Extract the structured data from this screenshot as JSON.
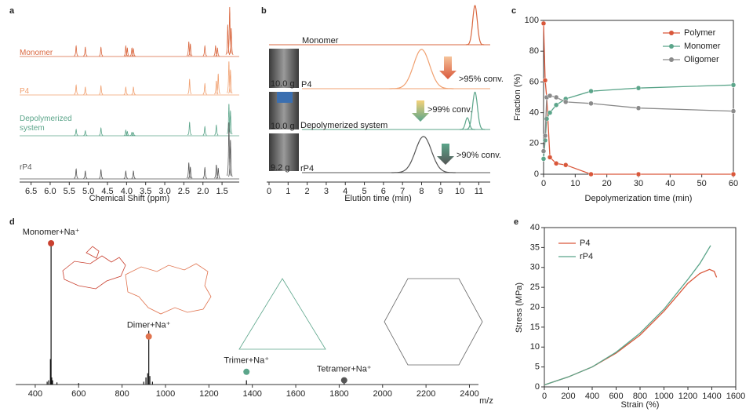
{
  "chart_data": [
    {
      "type": "spectrum",
      "panel": "a",
      "xlabel": "Chemical Shift (ppm)",
      "xlim": [
        6.8,
        1.05
      ],
      "xticks": [
        6.5,
        {
          "value": 6,
          "label": "6.0"
        },
        5.5,
        {
          "value": 5,
          "label": "5.0"
        },
        4.5,
        {
          "value": 4,
          "label": "4.0"
        },
        3.5,
        {
          "value": 3,
          "label": "3.0"
        },
        2.5,
        {
          "value": 2,
          "label": "2.0"
        },
        1.5
      ],
      "series": [
        {
          "name": "Monomer",
          "color": "#d9673f",
          "x": [
            5.32,
            5.08,
            4.67,
            4.02,
            3.98,
            3.86,
            3.82,
            2.37,
            2.33,
            1.95,
            1.67,
            1.62,
            1.35,
            1.3,
            1.26
          ],
          "values": [
            30,
            26,
            26,
            30,
            24,
            24,
            22,
            42,
            36,
            30,
            30,
            24,
            90,
            140,
            80
          ]
        },
        {
          "name": "P4",
          "color": "#f0a070",
          "x": [
            5.32,
            5.08,
            4.67,
            4.02,
            3.82,
            2.35,
            1.95,
            1.65,
            1.6,
            1.32,
            1.28
          ],
          "values": [
            28,
            22,
            26,
            22,
            22,
            44,
            32,
            40,
            60,
            95,
            70
          ]
        },
        {
          "name": "Depolymerized system",
          "color": "#5ba58a",
          "x": [
            5.32,
            5.08,
            4.67,
            4.02,
            3.98,
            3.86,
            3.82,
            2.35,
            1.95,
            1.65,
            1.32,
            1.28
          ],
          "values": [
            18,
            14,
            22,
            16,
            12,
            10,
            9,
            38,
            26,
            30,
            90,
            70
          ]
        },
        {
          "name": "rP4",
          "color": "#555555",
          "x": [
            5.32,
            5.08,
            4.67,
            4.02,
            3.82,
            2.37,
            2.33,
            1.95,
            1.65,
            1.6,
            1.32,
            1.28
          ],
          "values": [
            28,
            22,
            26,
            22,
            22,
            46,
            34,
            32,
            40,
            30,
            160,
            110
          ]
        }
      ]
    },
    {
      "type": "chromatogram",
      "panel": "b",
      "xlabel": "Elution time (min)",
      "xlim": [
        0,
        11.6
      ],
      "xticks": [
        0,
        1,
        2,
        3,
        4,
        5,
        6,
        7,
        8,
        9,
        10,
        11
      ],
      "series": [
        {
          "name": "Monomer",
          "color": "#d9673f",
          "x": [
            10.8
          ],
          "values": [
            100
          ],
          "widths": [
            0.12
          ]
        },
        {
          "name": "P4",
          "color": "#f0a070",
          "x": [
            8.0
          ],
          "values": [
            100
          ],
          "widths": [
            0.42
          ]
        },
        {
          "name": "Depolymerized system",
          "color": "#5ba58a",
          "x": [
            10.4,
            10.8
          ],
          "values": [
            30,
            95
          ],
          "widths": [
            0.1,
            0.13
          ]
        },
        {
          "name": "rP4",
          "color": "#555555",
          "x": [
            8.1
          ],
          "values": [
            92
          ],
          "widths": [
            0.42
          ]
        }
      ],
      "photo_labels": [
        "10.0 g",
        "10.0 g",
        "9.2 g"
      ],
      "annotations": [
        ">95% conv.",
        ">99% conv.",
        ">90% conv."
      ]
    },
    {
      "type": "line",
      "panel": "c",
      "xlabel": "Depolymerization time (min)",
      "ylabel": "Fraction (%)",
      "xlim": [
        0,
        60
      ],
      "xticks": [
        0,
        10,
        20,
        30,
        40,
        50,
        60
      ],
      "ylim": [
        0,
        100
      ],
      "yticks": [
        0,
        20,
        40,
        60,
        80,
        100
      ],
      "markers": true,
      "legend": "top-right",
      "series": [
        {
          "name": "Polymer",
          "color": "#d9573a",
          "x": [
            0,
            0.5,
            1,
            2,
            4,
            7,
            15,
            30,
            60
          ],
          "values": [
            98,
            61,
            50,
            11,
            7,
            6,
            0,
            0,
            0
          ]
        },
        {
          "name": "Monomer",
          "color": "#5ba58a",
          "x": [
            0,
            0.5,
            1,
            2,
            4,
            7,
            15,
            30,
            60
          ],
          "values": [
            10,
            22,
            36,
            40,
            45,
            49,
            54,
            56,
            58
          ]
        },
        {
          "name": "Oligomer",
          "color": "#8a8a8a",
          "x": [
            0,
            0.5,
            1,
            2,
            4,
            7,
            15,
            30,
            60
          ],
          "values": [
            15,
            25,
            50,
            51,
            50,
            47,
            46,
            43,
            41
          ]
        }
      ]
    },
    {
      "type": "mass_spectrum",
      "panel": "d",
      "xlabel": "m/z",
      "xlim": [
        310,
        2550
      ],
      "xticks": [
        400,
        600,
        800,
        1000,
        1200,
        1400,
        1600,
        1800,
        2000,
        2200,
        2400
      ],
      "x": [
        455,
        462,
        470,
        473,
        476,
        480,
        500,
        600,
        900,
        910,
        918,
        923,
        928,
        940,
        1373,
        1823
      ],
      "values": [
        2,
        3,
        18,
        100,
        5,
        3,
        1.5,
        1,
        2,
        5,
        8,
        38,
        6,
        2,
        3,
        1.5
      ],
      "color": "#111111",
      "annotations": [
        {
          "text": "Monomer+Na⁺",
          "x": 473,
          "y": 100,
          "color": "#c9402f"
        },
        {
          "text": "Dimer+Na⁺",
          "x": 923,
          "y": 34,
          "color": "#e0734e"
        },
        {
          "text": "Trimer+Na⁺",
          "x": 1373,
          "y": 9,
          "color": "#5ba58a"
        },
        {
          "text": "Tetramer+Na⁺",
          "x": 1823,
          "y": 3,
          "color": "#555555"
        }
      ]
    },
    {
      "type": "line",
      "panel": "e",
      "xlabel": "Strain (%)",
      "ylabel": "Stress (MPa)",
      "xlim": [
        0,
        1600
      ],
      "xticks": [
        0,
        200,
        400,
        600,
        800,
        1000,
        1200,
        1400,
        1600
      ],
      "ylim": [
        0,
        40
      ],
      "yticks": [
        0,
        5,
        10,
        15,
        20,
        25,
        30,
        35,
        40
      ],
      "markers": false,
      "legend": "top-left",
      "series": [
        {
          "name": "P4",
          "color": "#d9573a",
          "x": [
            0,
            200,
            400,
            600,
            800,
            1000,
            1200,
            1300,
            1380,
            1420,
            1440
          ],
          "values": [
            0.5,
            2.5,
            5,
            8.5,
            13,
            19,
            26,
            28.5,
            29.5,
            29,
            27.5
          ]
        },
        {
          "name": "rP4",
          "color": "#5ba58a",
          "x": [
            0,
            200,
            400,
            600,
            800,
            1000,
            1200,
            1300,
            1390
          ],
          "values": [
            0.5,
            2.5,
            5,
            8.7,
            13.5,
            19.5,
            27,
            31,
            35.5
          ]
        }
      ]
    }
  ]
}
